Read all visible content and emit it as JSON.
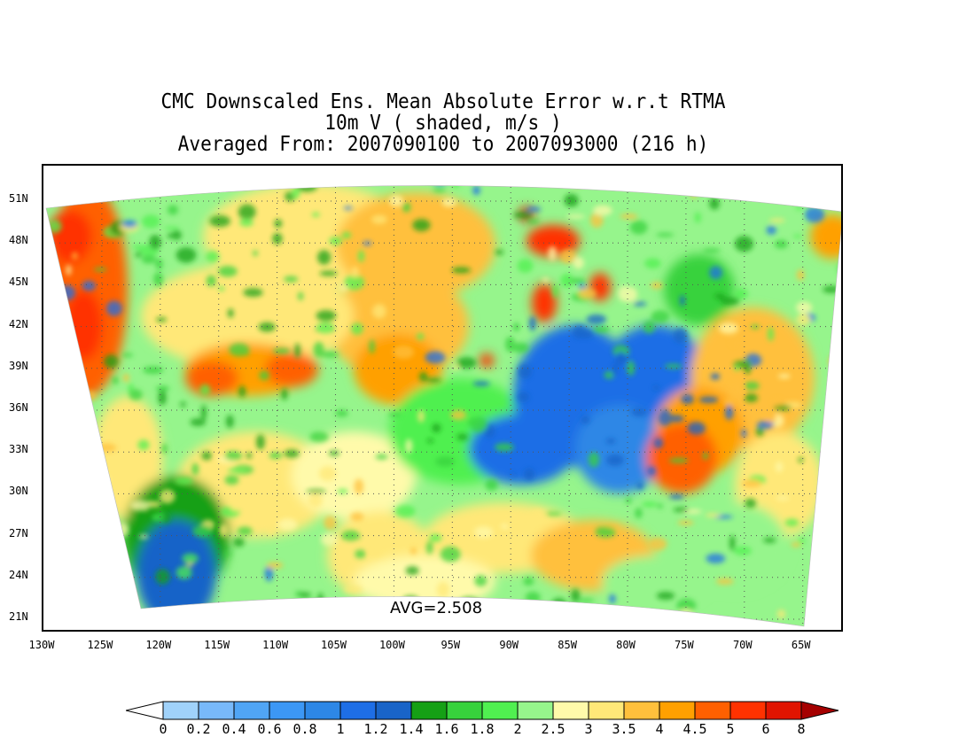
{
  "title": {
    "line1": "CMC Downscaled Ens. Mean Absolute Error w.r.t RTMA",
    "line2": "10m V ( shaded, m/s )",
    "line3": "Averaged From: 2007090100 to 2007093000 (216 h)"
  },
  "map": {
    "avg_label": "AVG=2.508",
    "lat_labels": [
      "51N",
      "48N",
      "45N",
      "42N",
      "39N",
      "36N",
      "33N",
      "30N",
      "27N",
      "24N",
      "21N"
    ],
    "lon_labels": [
      "130W",
      "125W",
      "120W",
      "115W",
      "110W",
      "105W",
      "100W",
      "95W",
      "90W",
      "85W",
      "80W",
      "75W",
      "70W",
      "65W"
    ]
  },
  "colorbar": {
    "levels": [
      "0",
      "0.2",
      "0.4",
      "0.6",
      "0.8",
      "1",
      "1.2",
      "1.4",
      "1.6",
      "1.8",
      "2",
      "2.5",
      "3",
      "3.5",
      "4",
      "4.5",
      "5",
      "6",
      "8"
    ],
    "colors": [
      "#a0d2fa",
      "#78b9fa",
      "#50a5f5",
      "#3c97f5",
      "#2d87e6",
      "#1e6ee6",
      "#1964c8",
      "#15a015",
      "#37d23c",
      "#50f050",
      "#96f58c",
      "#fffaaa",
      "#ffe878",
      "#ffc03c",
      "#ffa000",
      "#ff6000",
      "#ff3200",
      "#e11400",
      "#a50000"
    ]
  }
}
